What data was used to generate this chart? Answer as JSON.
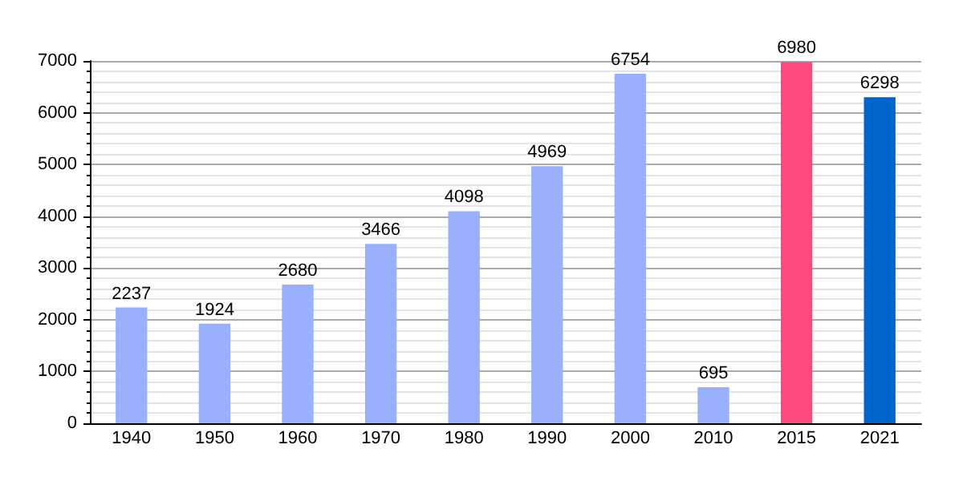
{
  "chart_data": {
    "type": "bar",
    "categories": [
      "1940",
      "1950",
      "1960",
      "1970",
      "1980",
      "1990",
      "2000",
      "2010",
      "2015",
      "2021"
    ],
    "values": [
      2237,
      1924,
      2680,
      3466,
      4098,
      4969,
      6754,
      695,
      6980,
      6298
    ],
    "colors": [
      "#99b0fc",
      "#99b0fc",
      "#99b0fc",
      "#99b0fc",
      "#99b0fc",
      "#99b0fc",
      "#99b0fc",
      "#99b0fc",
      "#fe4a7f",
      "#0066cc"
    ],
    "ylim": [
      0,
      7000
    ],
    "yticks": [
      0,
      1000,
      2000,
      3000,
      4000,
      5000,
      6000,
      7000
    ],
    "grid": "y",
    "data_labels": true
  }
}
